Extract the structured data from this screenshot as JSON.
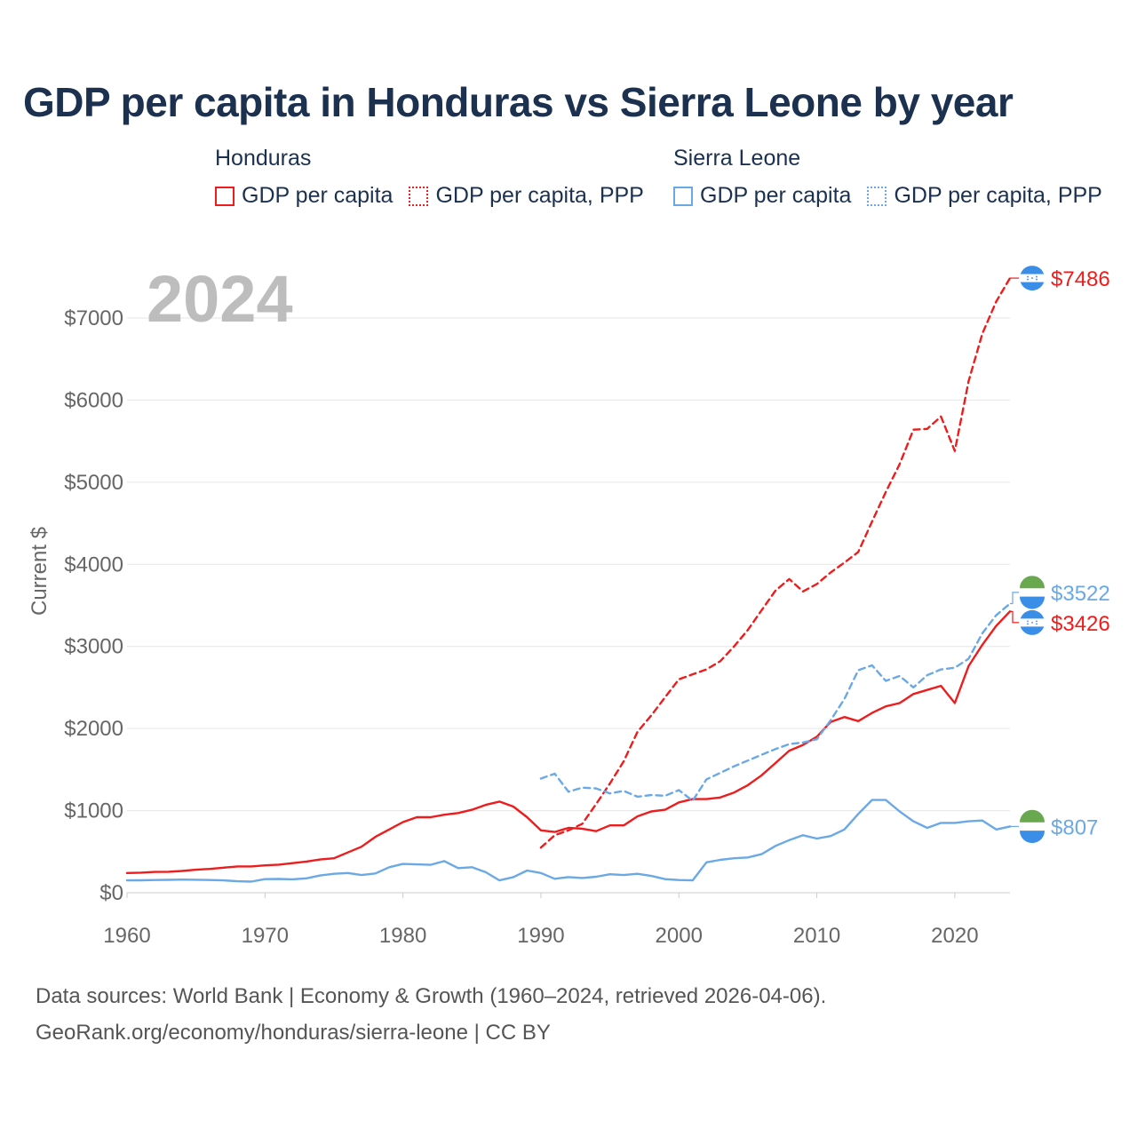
{
  "title": "GDP per capita in Honduras vs Sierra Leone by year",
  "legend": [
    {
      "country": "Honduras",
      "items": [
        {
          "label": "GDP per capita",
          "color": "#ee1c1c",
          "style": "solid"
        },
        {
          "label": "GDP per capita, PPP",
          "color": "#ee1c1c",
          "style": "dotted"
        }
      ]
    },
    {
      "country": "Sierra Leone",
      "items": [
        {
          "label": "GDP per capita",
          "color": "#6aa8e6",
          "style": "solid"
        },
        {
          "label": "GDP per capita, PPP",
          "color": "#6aa8e6",
          "style": "dotted"
        }
      ]
    }
  ],
  "year_label": "2024",
  "footer": {
    "sources": "Data sources: World Bank | Economy & Growth (1960–2024, retrieved 2026-04-06).",
    "credit": "GeoRank.org/economy/honduras/sierra-leone | CC BY"
  },
  "colors": {
    "honduras": "#ee1c1c",
    "sierra_leone": "#6aa8e6",
    "grid": "#e6e6e6",
    "axis_text": "#666666",
    "year_watermark": "#bdbdbd",
    "title": "#1c3150"
  },
  "chart_data": {
    "type": "line",
    "title": "GDP per capita in Honduras vs Sierra Leone by year",
    "xlabel": "",
    "ylabel": "Current $",
    "xlim": [
      1960,
      2024
    ],
    "ylim": [
      0,
      7500
    ],
    "x_ticks": [
      1960,
      1970,
      1980,
      1990,
      2000,
      2010,
      2020
    ],
    "x_tick_labels": [
      "1960",
      "1970",
      "1980",
      "1990",
      "2000",
      "2010",
      "2020"
    ],
    "y_ticks": [
      0,
      1000,
      2000,
      3000,
      4000,
      5000,
      6000,
      7000
    ],
    "y_tick_labels": [
      "$0",
      "$1000",
      "$2000",
      "$3000",
      "$4000",
      "$5000",
      "$6000",
      "$7000"
    ],
    "grid": true,
    "series": [
      {
        "name": "Honduras GDP per capita",
        "country": "Honduras",
        "style": "solid",
        "color": "#ee1c1c",
        "x": [
          1960,
          1961,
          1962,
          1963,
          1964,
          1965,
          1966,
          1967,
          1968,
          1969,
          1970,
          1971,
          1972,
          1973,
          1974,
          1975,
          1976,
          1977,
          1978,
          1979,
          1980,
          1981,
          1982,
          1983,
          1984,
          1985,
          1986,
          1987,
          1988,
          1989,
          1990,
          1991,
          1992,
          1993,
          1994,
          1995,
          1996,
          1997,
          1998,
          1999,
          2000,
          2001,
          2002,
          2003,
          2004,
          2005,
          2006,
          2007,
          2008,
          2009,
          2010,
          2011,
          2012,
          2013,
          2014,
          2015,
          2016,
          2017,
          2018,
          2019,
          2020,
          2021,
          2022,
          2023,
          2024
        ],
        "values": [
          240,
          245,
          253,
          255,
          265,
          280,
          290,
          305,
          320,
          320,
          333,
          342,
          360,
          380,
          405,
          420,
          490,
          560,
          680,
          770,
          860,
          920,
          920,
          950,
          970,
          1010,
          1070,
          1110,
          1050,
          920,
          760,
          740,
          790,
          780,
          750,
          820,
          820,
          930,
          990,
          1010,
          1100,
          1140,
          1140,
          1160,
          1220,
          1310,
          1430,
          1580,
          1730,
          1800,
          1900,
          2080,
          2140,
          2090,
          2190,
          2270,
          2310,
          2420,
          2470,
          2520,
          2310,
          2760,
          3020,
          3250,
          3426
        ]
      },
      {
        "name": "Honduras GDP per capita, PPP",
        "country": "Honduras",
        "style": "dotted",
        "color": "#ee1c1c",
        "x": [
          1990,
          1991,
          1992,
          1993,
          1994,
          1995,
          1996,
          1997,
          1998,
          1999,
          2000,
          2001,
          2002,
          2003,
          2004,
          2005,
          2006,
          2007,
          2008,
          2009,
          2010,
          2011,
          2012,
          2013,
          2014,
          2015,
          2016,
          2017,
          2018,
          2019,
          2020,
          2021,
          2022,
          2023,
          2024
        ],
        "values": [
          550,
          700,
          760,
          840,
          1080,
          1330,
          1600,
          1960,
          2160,
          2380,
          2600,
          2660,
          2720,
          2820,
          3000,
          3200,
          3440,
          3680,
          3820,
          3670,
          3760,
          3900,
          4020,
          4150,
          4520,
          4880,
          5220,
          5640,
          5650,
          5800,
          5380,
          6230,
          6810,
          7200,
          7486
        ]
      },
      {
        "name": "Sierra Leone GDP per capita",
        "country": "Sierra Leone",
        "style": "solid",
        "color": "#6aa8e6",
        "x": [
          1960,
          1961,
          1962,
          1963,
          1964,
          1965,
          1966,
          1967,
          1968,
          1969,
          1970,
          1971,
          1972,
          1973,
          1974,
          1975,
          1976,
          1977,
          1978,
          1979,
          1980,
          1981,
          1982,
          1983,
          1984,
          1985,
          1986,
          1987,
          1988,
          1989,
          1990,
          1991,
          1992,
          1993,
          1994,
          1995,
          1996,
          1997,
          1998,
          1999,
          2000,
          2001,
          2002,
          2003,
          2004,
          2005,
          2006,
          2007,
          2008,
          2009,
          2010,
          2011,
          2012,
          2013,
          2014,
          2015,
          2016,
          2017,
          2018,
          2019,
          2020,
          2021,
          2022,
          2023,
          2024
        ],
        "values": [
          150,
          152,
          155,
          157,
          160,
          158,
          155,
          150,
          140,
          135,
          165,
          168,
          163,
          175,
          210,
          230,
          240,
          215,
          235,
          310,
          350,
          345,
          340,
          385,
          300,
          310,
          250,
          150,
          190,
          270,
          240,
          170,
          190,
          180,
          195,
          225,
          215,
          230,
          205,
          165,
          155,
          150,
          370,
          400,
          420,
          430,
          470,
          570,
          640,
          700,
          660,
          690,
          770,
          960,
          1130,
          1130,
          990,
          870,
          790,
          850,
          850,
          870,
          880,
          770,
          807
        ]
      },
      {
        "name": "Sierra Leone GDP per capita, PPP",
        "country": "Sierra Leone",
        "style": "dotted",
        "color": "#6aa8e6",
        "x": [
          1990,
          1991,
          1992,
          1993,
          1994,
          1995,
          1996,
          1997,
          1998,
          1999,
          2000,
          2001,
          2002,
          2003,
          2004,
          2005,
          2006,
          2007,
          2008,
          2009,
          2010,
          2011,
          2012,
          2013,
          2014,
          2015,
          2016,
          2017,
          2018,
          2019,
          2020,
          2021,
          2022,
          2023,
          2024
        ],
        "values": [
          1390,
          1450,
          1230,
          1280,
          1270,
          1210,
          1240,
          1170,
          1190,
          1180,
          1250,
          1120,
          1380,
          1460,
          1540,
          1610,
          1680,
          1750,
          1810,
          1830,
          1870,
          2100,
          2360,
          2710,
          2770,
          2580,
          2640,
          2500,
          2650,
          2720,
          2740,
          2850,
          3160,
          3380,
          3522
        ]
      }
    ],
    "end_labels": [
      {
        "country": "Honduras",
        "series": "Honduras GDP per capita, PPP",
        "text": "$7486",
        "value": 7486,
        "color": "#ee1c1c",
        "flag": "honduras"
      },
      {
        "country": "Sierra Leone",
        "series": "Sierra Leone GDP per capita, PPP",
        "text": "$3522",
        "value": 3522,
        "color": "#6aa8e6",
        "flag": "sierra-leone"
      },
      {
        "country": "Honduras",
        "series": "Honduras GDP per capita",
        "text": "$3426",
        "value": 3426,
        "color": "#ee1c1c",
        "flag": "honduras"
      },
      {
        "country": "Sierra Leone",
        "series": "Sierra Leone GDP per capita",
        "text": "$807",
        "value": 807,
        "color": "#6aa8e6",
        "flag": "sierra-leone"
      }
    ]
  }
}
